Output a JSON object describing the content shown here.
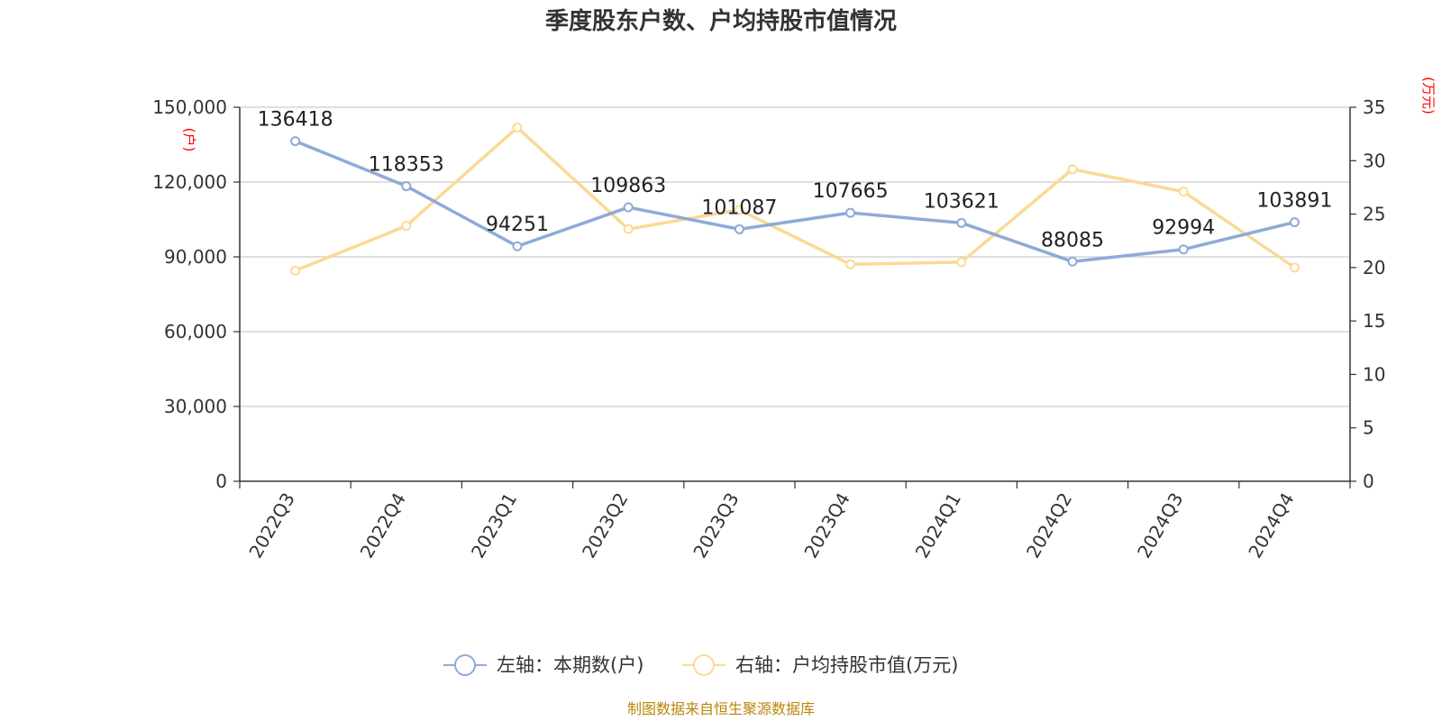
{
  "title": "季度股东户数、户均持股市值情况",
  "source": "制图数据来自恒生聚源数据库",
  "colors": {
    "series1": "#8eaad8",
    "series2": "#fbd996",
    "unit": "#ff0000",
    "source": "#b8860b"
  },
  "chart_data": {
    "type": "line",
    "title": "季度股东户数、户均持股市值情况",
    "categories": [
      "2022Q3",
      "2022Q4",
      "2023Q1",
      "2023Q2",
      "2023Q3",
      "2023Q4",
      "2024Q1",
      "2024Q2",
      "2024Q3",
      "2024Q4"
    ],
    "y_left": {
      "unit": "(户)",
      "min": 0,
      "max": 150000,
      "ticks": [
        "0",
        "30,000",
        "60,000",
        "90,000",
        "120,000",
        "150,000"
      ]
    },
    "y_right": {
      "unit": "(万元)",
      "min": 0,
      "max": 35,
      "ticks": [
        "0",
        "5",
        "10",
        "15",
        "20",
        "25",
        "30",
        "35"
      ]
    },
    "grid": true,
    "legend_position": "bottom-center",
    "series": [
      {
        "name": "左轴：本期数(户)",
        "axis": "left",
        "values": [
          136418,
          118353,
          94251,
          109863,
          101087,
          107665,
          103621,
          88085,
          92994,
          103891
        ],
        "labels": [
          "136418",
          "118353",
          "94251",
          "109863",
          "101087",
          "107665",
          "103621",
          "88085",
          "92994",
          "103891"
        ]
      },
      {
        "name": "右轴：户均持股市值(万元)",
        "axis": "right",
        "values": [
          19.7,
          23.9,
          33.1,
          23.6,
          25.4,
          20.3,
          20.5,
          29.2,
          27.1,
          20.0
        ]
      }
    ]
  }
}
